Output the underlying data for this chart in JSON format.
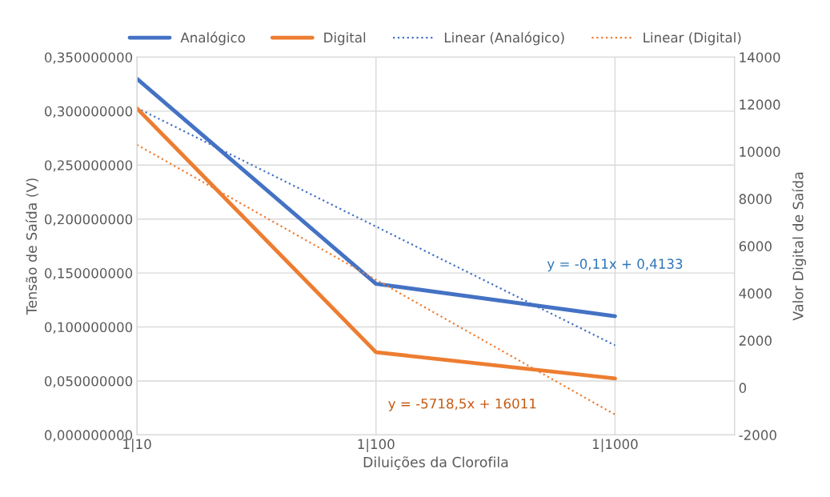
{
  "chart_data": {
    "type": "line",
    "xlabel": "Diluições da Clorofila",
    "ylabel": "Tensão de Saída (V)",
    "y2label": "Valor Digital de Saída",
    "categories": [
      "1|10",
      "1|100",
      "1|1000"
    ],
    "ylim": [
      0,
      0.35
    ],
    "yticks": [
      {
        "value": 0,
        "label": "0,000000000"
      },
      {
        "value": 0.05,
        "label": "0,050000000"
      },
      {
        "value": 0.1,
        "label": "0,100000000"
      },
      {
        "value": 0.15,
        "label": "0,150000000"
      },
      {
        "value": 0.2,
        "label": "0,200000000"
      },
      {
        "value": 0.25,
        "label": "0,250000000"
      },
      {
        "value": 0.3,
        "label": "0,300000000"
      },
      {
        "value": 0.35,
        "label": "0,350000000"
      }
    ],
    "y2lim": [
      -2000,
      14000
    ],
    "y2ticks": [
      -2000,
      0,
      2000,
      4000,
      6000,
      8000,
      10000,
      12000,
      14000
    ],
    "series": [
      {
        "name": "Analógico",
        "color": "#4472c4",
        "values": [
          0.33,
          0.14,
          0.11
        ],
        "line_style": "solid"
      },
      {
        "name": "Digital",
        "color": "#ed7d31",
        "values": [
          11830,
          1500,
          390
        ],
        "axis": "y2",
        "line_style": "solid"
      },
      {
        "name": "Linear (Analógico)",
        "color": "#4472c4",
        "values": [
          0.303,
          0.193,
          0.083
        ],
        "line_style": "dotted"
      },
      {
        "name": "Linear (Digital)",
        "color": "#ed7d31",
        "values": [
          10290,
          4570,
          -1140
        ],
        "axis": "y2",
        "line_style": "dotted"
      }
    ],
    "annotations": [
      "y = -0,11x + 0,4133",
      "y = -5718,5x + 16011"
    ],
    "grid": true,
    "legend": "top",
    "marker": "none"
  }
}
